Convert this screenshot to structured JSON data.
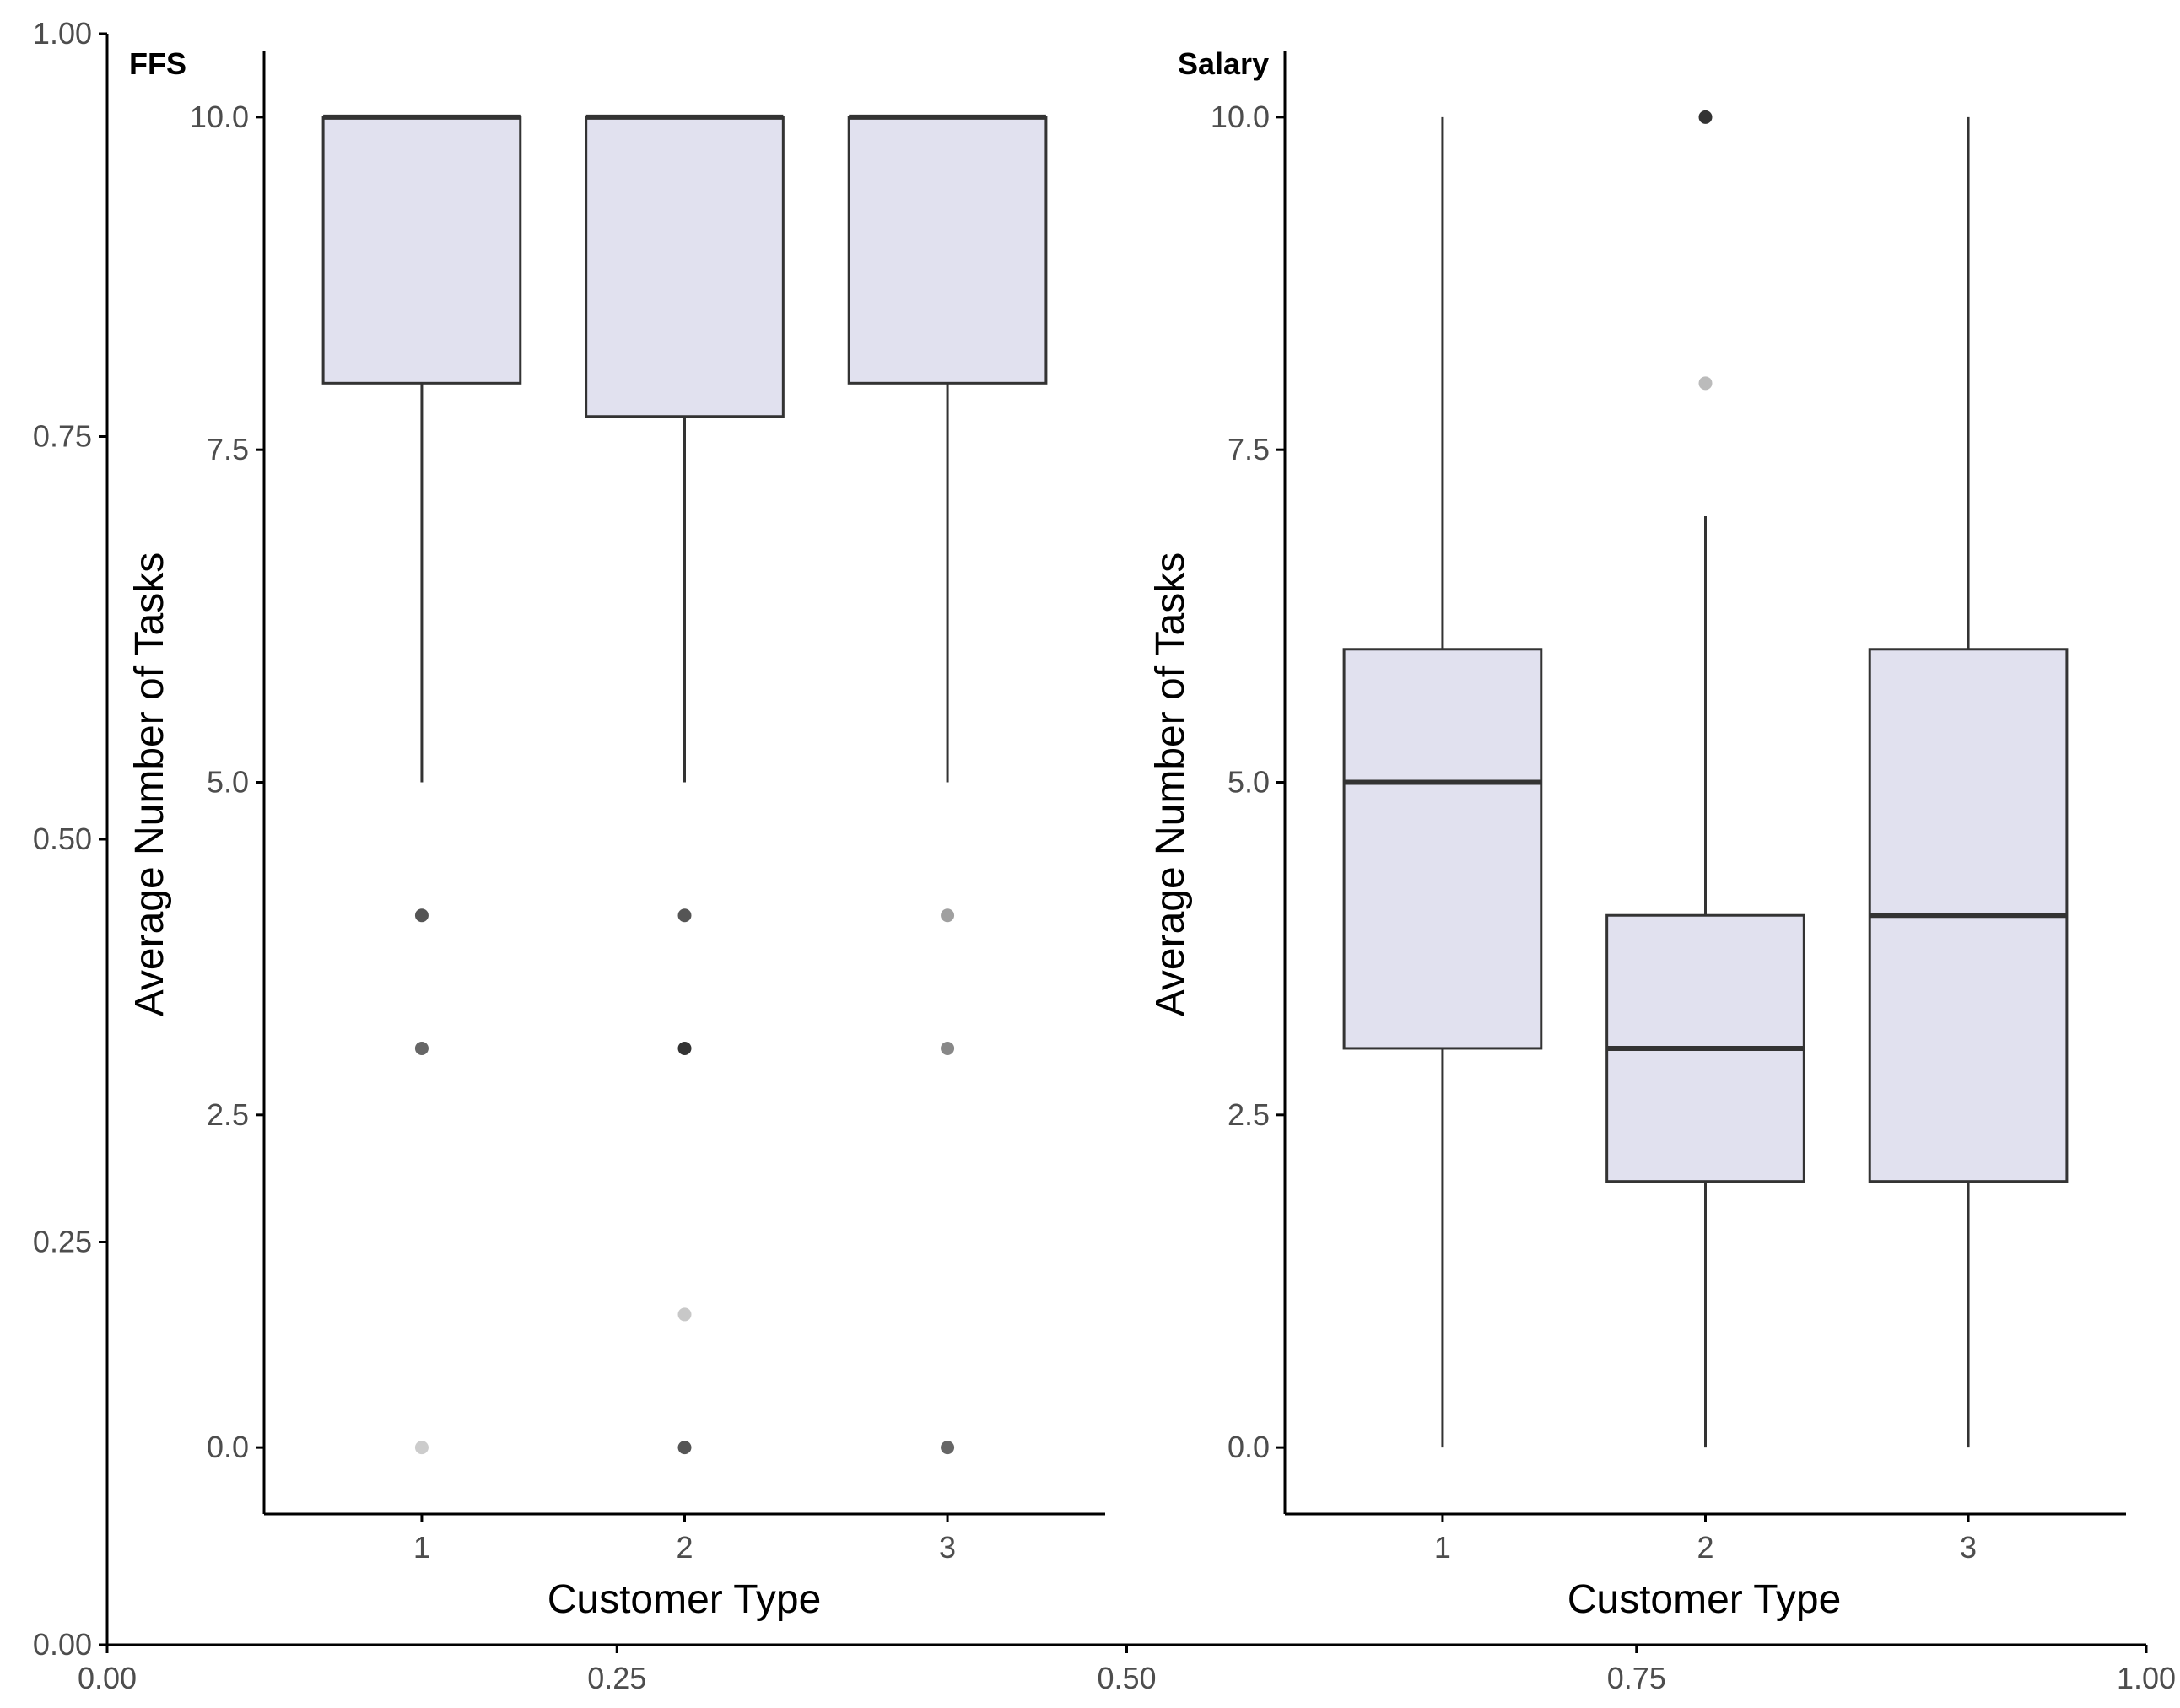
{
  "outer_axes": {
    "x_ticks": [
      "0.00",
      "0.25",
      "0.50",
      "0.75",
      "1.00"
    ],
    "y_ticks": [
      "0.00",
      "0.25",
      "0.50",
      "0.75",
      "1.00"
    ]
  },
  "colors": {
    "box_fill": "#e1e1ef",
    "box_stroke": "#333333",
    "axis_line": "#000000",
    "tick_text": "#4d4d4d"
  },
  "chart_data": [
    {
      "type": "box",
      "panel_tag": "FFS",
      "xlabel": "Customer Type",
      "ylabel": "Average Number of Tasks",
      "categories": [
        "1",
        "2",
        "3"
      ],
      "y_ticks": [
        "0.0",
        "2.5",
        "5.0",
        "7.5",
        "10.0"
      ],
      "ylim": [
        -0.5,
        10.5
      ],
      "boxes": [
        {
          "category": "1",
          "q1": 8,
          "median": 10,
          "q3": 10,
          "whisker_low": 5,
          "whisker_high": 10,
          "outliers": [
            {
              "y": 4,
              "shade": "#555555"
            },
            {
              "y": 3,
              "shade": "#666666"
            },
            {
              "y": 0,
              "shade": "#cccccc"
            }
          ]
        },
        {
          "category": "2",
          "q1": 7.75,
          "median": 10,
          "q3": 10,
          "whisker_low": 5,
          "whisker_high": 10,
          "outliers": [
            {
              "y": 4,
              "shade": "#555555"
            },
            {
              "y": 3,
              "shade": "#333333"
            },
            {
              "y": 1,
              "shade": "#c8c8c8"
            },
            {
              "y": 0,
              "shade": "#555555"
            }
          ]
        },
        {
          "category": "3",
          "q1": 8,
          "median": 10,
          "q3": 10,
          "whisker_low": 5,
          "whisker_high": 10,
          "outliers": [
            {
              "y": 4,
              "shade": "#a0a0a0"
            },
            {
              "y": 3,
              "shade": "#888888"
            },
            {
              "y": 0,
              "shade": "#666666"
            }
          ]
        }
      ]
    },
    {
      "type": "box",
      "panel_tag": "Salary",
      "xlabel": "Customer Type",
      "ylabel": "Average Number of Tasks",
      "categories": [
        "1",
        "2",
        "3"
      ],
      "y_ticks": [
        "0.0",
        "2.5",
        "5.0",
        "7.5",
        "10.0"
      ],
      "ylim": [
        -0.5,
        10.5
      ],
      "boxes": [
        {
          "category": "1",
          "q1": 3,
          "median": 5,
          "q3": 6,
          "whisker_low": 0,
          "whisker_high": 10,
          "outliers": []
        },
        {
          "category": "2",
          "q1": 2,
          "median": 3,
          "q3": 4,
          "whisker_low": 0,
          "whisker_high": 7,
          "outliers": [
            {
              "y": 10,
              "shade": "#333333"
            },
            {
              "y": 8,
              "shade": "#bbbbbb"
            }
          ]
        },
        {
          "category": "3",
          "q1": 2,
          "median": 4,
          "q3": 6,
          "whisker_low": 0,
          "whisker_high": 10,
          "outliers": []
        }
      ]
    }
  ]
}
